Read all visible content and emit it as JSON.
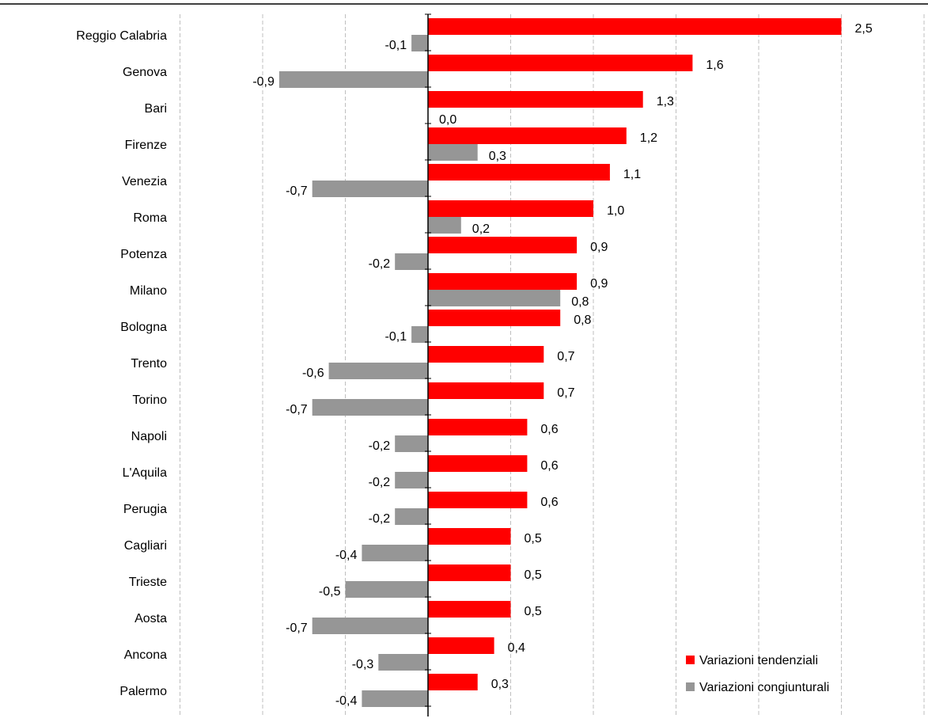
{
  "chart_data": {
    "type": "bar",
    "orientation": "horizontal",
    "categories": [
      "Reggio Calabria",
      "Genova",
      "Bari",
      "Firenze",
      "Venezia",
      "Roma",
      "Potenza",
      "Milano",
      "Bologna",
      "Trento",
      "Torino",
      "Napoli",
      "L'Aquila",
      "Perugia",
      "Cagliari",
      "Trieste",
      "Aosta",
      "Ancona",
      "Palermo"
    ],
    "series": [
      {
        "name": "Variazioni tendenziali",
        "color": "#ff0000",
        "values": [
          2.5,
          1.6,
          1.3,
          1.2,
          1.1,
          1.0,
          0.9,
          0.9,
          0.8,
          0.7,
          0.7,
          0.6,
          0.6,
          0.6,
          0.5,
          0.5,
          0.5,
          0.4,
          0.3
        ],
        "labels": [
          "2,5",
          "1,6",
          "1,3",
          "1,2",
          "1,1",
          "1,0",
          "0,9",
          "0,9",
          "0,8",
          "0,7",
          "0,7",
          "0,6",
          "0,6",
          "0,6",
          "0,5",
          "0,5",
          "0,5",
          "0,4",
          "0,3"
        ]
      },
      {
        "name": "Variazioni congiunturali",
        "color": "#969696",
        "values": [
          -0.1,
          -0.9,
          0.0,
          0.3,
          -0.7,
          0.2,
          -0.2,
          0.8,
          -0.1,
          -0.6,
          -0.7,
          -0.2,
          -0.2,
          -0.2,
          -0.4,
          -0.5,
          -0.7,
          -0.3,
          -0.4
        ],
        "labels": [
          "-0,1",
          "-0,9",
          "0,0",
          "0,3",
          "-0,7",
          "0,2",
          "-0,2",
          "0,8",
          "-0,1",
          "-0,6",
          "-0,7",
          "-0,2",
          "-0,2",
          "-0,2",
          "-0,4",
          "-0,5",
          "-0,7",
          "-0,3",
          "-0,4"
        ]
      }
    ],
    "xlim": [
      -1.5,
      3.0
    ],
    "grid": "vertical-dashed",
    "legend_position": "bottom-right"
  }
}
